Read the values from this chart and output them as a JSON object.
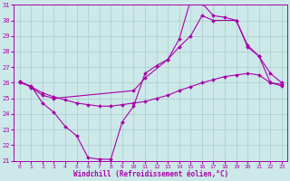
{
  "xlabel": "Windchill (Refroidissement éolien,°C)",
  "xlim": [
    -0.5,
    23.5
  ],
  "ylim": [
    21,
    31
  ],
  "xticks": [
    0,
    1,
    2,
    3,
    4,
    5,
    6,
    7,
    8,
    9,
    10,
    11,
    12,
    13,
    14,
    15,
    16,
    17,
    18,
    19,
    20,
    21,
    22,
    23
  ],
  "yticks": [
    21,
    22,
    23,
    24,
    25,
    26,
    27,
    28,
    29,
    30,
    31
  ],
  "bg_color": "#cce8e8",
  "line_color": "#aa00aa",
  "grid_color": "#aacccc",
  "lines": [
    {
      "x": [
        0,
        1,
        2,
        3,
        4,
        5,
        6,
        7,
        8,
        9,
        10,
        11,
        12,
        13,
        14,
        15,
        16,
        17,
        18,
        19,
        20,
        21,
        22,
        23
      ],
      "y": [
        26.0,
        25.8,
        24.7,
        24.1,
        23.2,
        22.6,
        21.2,
        21.1,
        21.1,
        23.5,
        24.5,
        26.6,
        27.1,
        27.5,
        28.8,
        31.3,
        31.1,
        30.3,
        30.2,
        30.0,
        28.3,
        27.7,
        26.0,
        25.9
      ]
    },
    {
      "x": [
        0,
        1,
        2,
        3,
        4,
        5,
        6,
        7,
        8,
        9,
        10,
        11,
        12,
        13,
        14,
        15,
        16,
        17,
        18,
        19,
        20,
        21,
        22,
        23
      ],
      "y": [
        26.1,
        25.75,
        25.35,
        25.1,
        24.9,
        24.7,
        24.6,
        24.5,
        24.5,
        24.6,
        24.7,
        24.8,
        25.0,
        25.2,
        25.5,
        25.75,
        26.0,
        26.2,
        26.4,
        26.5,
        26.6,
        26.5,
        26.0,
        25.8
      ]
    },
    {
      "x": [
        0,
        1,
        2,
        3,
        10,
        11,
        13,
        14,
        15,
        16,
        17,
        19,
        20,
        21,
        22,
        23
      ],
      "y": [
        26.1,
        25.7,
        25.2,
        25.0,
        25.5,
        26.3,
        27.5,
        28.3,
        29.0,
        30.3,
        30.0,
        30.0,
        28.4,
        27.7,
        26.6,
        26.0
      ]
    }
  ]
}
